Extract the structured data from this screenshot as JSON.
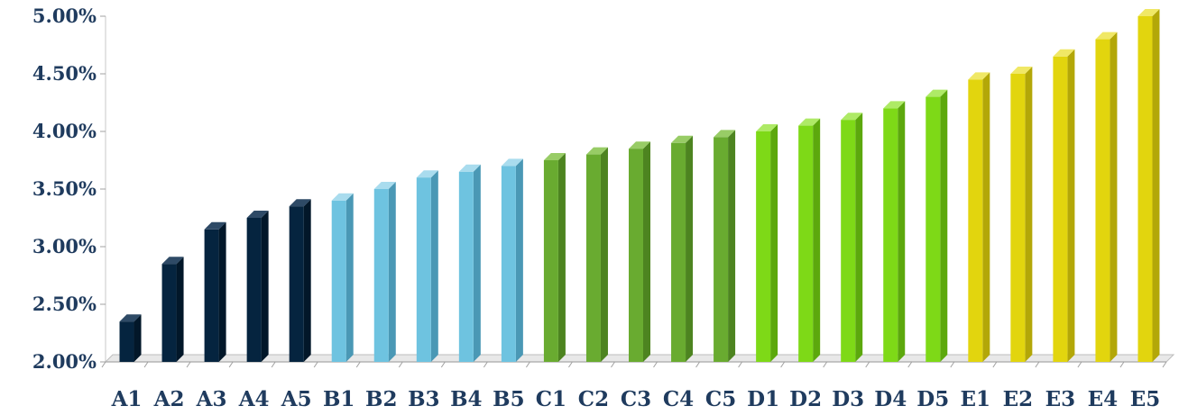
{
  "chart_data": {
    "type": "bar",
    "categories": [
      "A1",
      "A2",
      "A3",
      "A4",
      "A5",
      "B1",
      "B2",
      "B3",
      "B4",
      "B5",
      "C1",
      "C2",
      "C3",
      "C4",
      "C5",
      "D1",
      "D2",
      "D3",
      "D4",
      "D5",
      "E1",
      "E2",
      "E3",
      "E4",
      "E5"
    ],
    "values": [
      2.35,
      2.85,
      3.15,
      3.25,
      3.35,
      3.4,
      3.5,
      3.6,
      3.65,
      3.7,
      3.75,
      3.8,
      3.85,
      3.9,
      3.95,
      4.0,
      4.05,
      4.1,
      4.2,
      4.3,
      4.45,
      4.5,
      4.65,
      4.8,
      5.0
    ],
    "group_colors": {
      "A": {
        "front": "#05243f",
        "side": "#021729",
        "top": "#2e4a66"
      },
      "B": {
        "front": "#6ec3e0",
        "side": "#4a98b5",
        "top": "#a9dcee"
      },
      "C": {
        "front": "#69ab30",
        "side": "#4d8420",
        "top": "#98cc66"
      },
      "D": {
        "front": "#7ed917",
        "side": "#5ca80d",
        "top": "#aeea66"
      },
      "E": {
        "front": "#e2d50e",
        "side": "#b3a708",
        "top": "#f0e866"
      }
    },
    "yticks": [
      "2.00%",
      "2.50%",
      "3.00%",
      "3.50%",
      "4.00%",
      "4.50%",
      "5.00%"
    ],
    "ytick_values": [
      2.0,
      2.5,
      3.0,
      3.5,
      4.0,
      4.5,
      5.0
    ],
    "ylim": [
      2.0,
      5.0
    ],
    "grid": false,
    "legend": "none",
    "title": "",
    "xlabel": "",
    "ylabel": ""
  }
}
